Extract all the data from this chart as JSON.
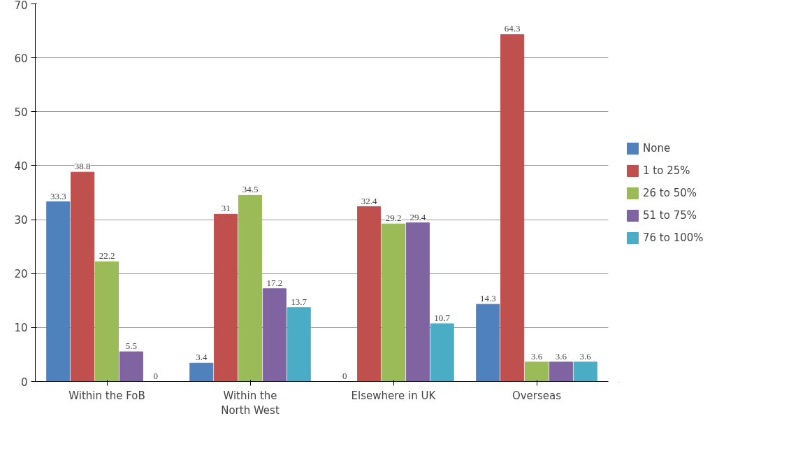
{
  "chart_data": {
    "type": "bar",
    "categories": [
      "Within the FoB",
      "Within the\nNorth West",
      "Elsewhere in UK",
      "Overseas"
    ],
    "series": [
      {
        "name": "None",
        "color": "#4f81bd",
        "values": [
          33.3,
          3.4,
          0,
          14.3
        ]
      },
      {
        "name": "1 to 25%",
        "color": "#c0504d",
        "values": [
          38.8,
          31,
          32.4,
          64.3
        ]
      },
      {
        "name": "26 to 50%",
        "color": "#9bbb59",
        "values": [
          22.2,
          34.5,
          29.2,
          3.6
        ]
      },
      {
        "name": "51 to 75%",
        "color": "#8064a2",
        "values": [
          5.5,
          17.2,
          29.4,
          3.6
        ]
      },
      {
        "name": "76 to 100%",
        "color": "#4bacc6",
        "values": [
          0,
          13.7,
          10.7,
          3.6
        ]
      }
    ],
    "ylim": [
      0,
      70
    ],
    "yticks": [
      0,
      10,
      20,
      30,
      40,
      50,
      60,
      70
    ],
    "grid": "y",
    "legend": "right",
    "data_labels": true
  }
}
